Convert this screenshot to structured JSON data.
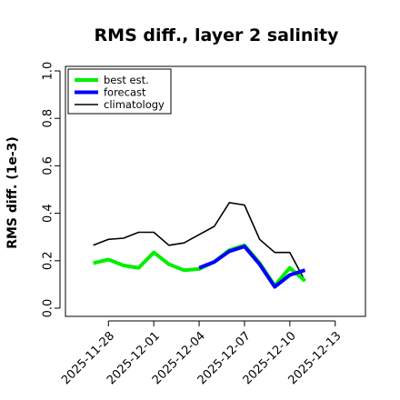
{
  "chart_data": {
    "type": "line",
    "title": "RMS diff., layer 2 salinity",
    "xlabel": "",
    "ylabel": "RMS diff. (1e-3)",
    "ylim": [
      0.0,
      1.0
    ],
    "yticks": [
      "0.0",
      "0.2",
      "0.4",
      "0.6",
      "0.8",
      "1.0"
    ],
    "yticks_values": [
      0.0,
      0.2,
      0.4,
      0.6,
      0.8,
      1.0
    ],
    "xlim": [
      "2025-11-26",
      "2025-12-15"
    ],
    "xticks": [
      "2025-11-28",
      "2025-12-01",
      "2025-12-04",
      "2025-12-07",
      "2025-12-10",
      "2025-12-13"
    ],
    "highlight_tick": "2025-12-04",
    "highlight_color": "#228b22",
    "grid": false,
    "legend_position": "top-left",
    "series": [
      {
        "name": "best est.",
        "color": "#00ee00",
        "x": [
          "2025-11-27",
          "2025-11-28",
          "2025-11-29",
          "2025-11-30",
          "2025-12-01",
          "2025-12-02",
          "2025-12-03",
          "2025-12-04",
          "2025-12-05",
          "2025-12-06",
          "2025-12-07",
          "2025-12-08",
          "2025-12-09",
          "2025-12-10",
          "2025-12-11"
        ],
        "values": [
          0.19,
          0.205,
          0.18,
          0.17,
          0.235,
          0.185,
          0.16,
          0.165,
          0.195,
          0.245,
          0.265,
          0.19,
          0.095,
          0.17,
          0.115
        ]
      },
      {
        "name": "forecast",
        "color": "#0000ff",
        "x": [
          "2025-12-04",
          "2025-12-05",
          "2025-12-06",
          "2025-12-07",
          "2025-12-08",
          "2025-12-09",
          "2025-12-10",
          "2025-12-11"
        ],
        "values": [
          0.17,
          0.195,
          0.24,
          0.26,
          0.185,
          0.09,
          0.14,
          0.16
        ]
      },
      {
        "name": "climatology",
        "color": "#000000",
        "x": [
          "2025-11-27",
          "2025-11-28",
          "2025-11-29",
          "2025-11-30",
          "2025-12-01",
          "2025-12-02",
          "2025-12-03",
          "2025-12-04",
          "2025-12-05",
          "2025-12-06",
          "2025-12-07",
          "2025-12-08",
          "2025-12-09",
          "2025-12-10",
          "2025-12-11"
        ],
        "values": [
          0.265,
          0.29,
          0.295,
          0.32,
          0.32,
          0.265,
          0.275,
          0.31,
          0.345,
          0.445,
          0.435,
          0.29,
          0.235,
          0.235,
          0.115
        ]
      }
    ]
  }
}
